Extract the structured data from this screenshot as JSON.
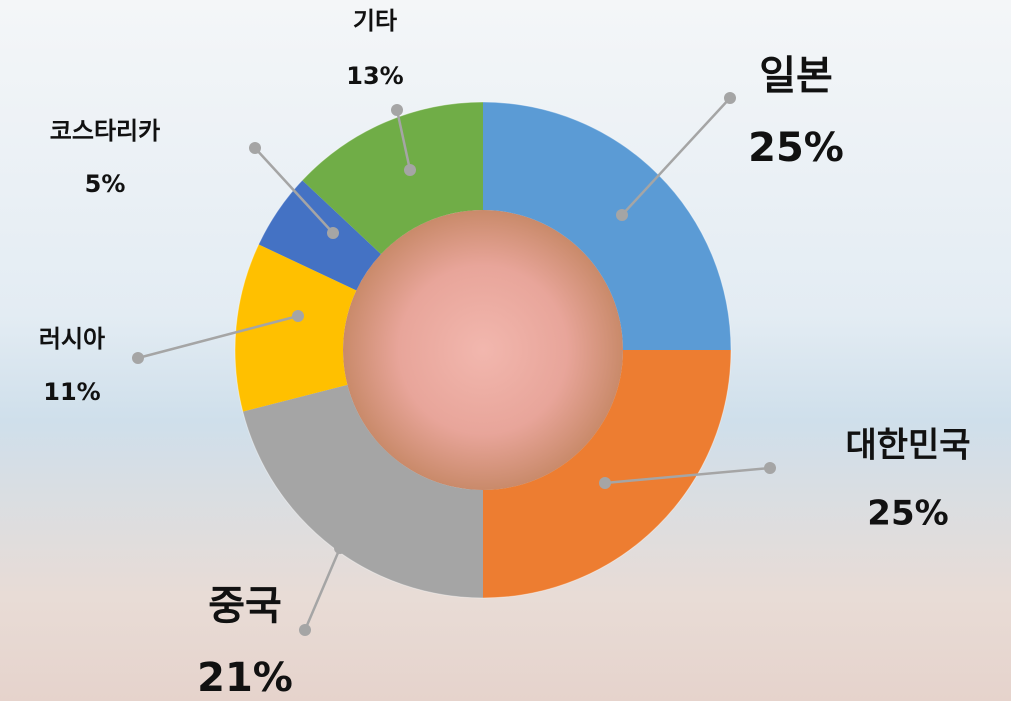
{
  "chart_data": {
    "type": "pie",
    "categories": [
      "일본",
      "대한민국",
      "중국",
      "러시아",
      "코스타리카",
      "기타"
    ],
    "values": [
      25,
      25,
      21,
      11,
      5,
      13
    ],
    "value_labels": [
      "25%",
      "25%",
      "21%",
      "11%",
      "5%",
      "13%"
    ],
    "colors": [
      "#5b9bd5",
      "#ed7d31",
      "#a5a5a5",
      "#ffc000",
      "#4472c4",
      "#70ad47"
    ]
  }
}
